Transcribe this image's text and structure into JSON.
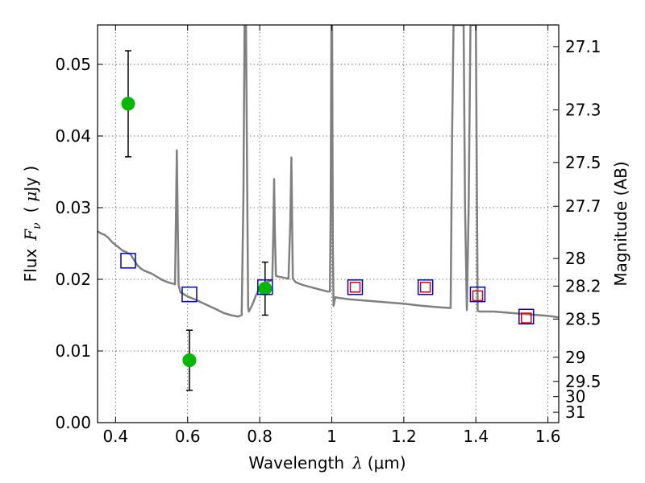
{
  "chart_data": {
    "type": "scatter",
    "title": "",
    "xlabel_text": "Wavelength",
    "xlabel_symbol": "λ",
    "xlabel_unit": "(μm)",
    "ylabel_text": "Flux",
    "ylabel_symbol": "F",
    "ylabel_subscript": "ν",
    "ylabel_unit_open": "(",
    "ylabel_unit_mu": "μ",
    "ylabel_unit_rest": "Jy )",
    "y2label": "Magnitude (AB)",
    "xlim": [
      0.35,
      1.63
    ],
    "ylim": [
      0.0,
      0.0555
    ],
    "grid": true,
    "x_ticks": [
      0.4,
      0.6,
      0.8,
      1.0,
      1.2,
      1.4,
      1.6
    ],
    "x_tick_labels": [
      "0.4",
      "0.6",
      "0.8",
      "1",
      "1.2",
      "1.4",
      "1.6"
    ],
    "y_ticks": [
      0.0,
      0.01,
      0.02,
      0.03,
      0.04,
      0.05
    ],
    "y_tick_labels": [
      "0.00",
      "0.01",
      "0.02",
      "0.03",
      "0.04",
      "0.05"
    ],
    "y2_ticks": [
      27.1,
      27.3,
      27.5,
      27.7,
      28.0,
      28.2,
      28.5,
      29.0,
      29.5,
      30.0,
      31.0
    ],
    "y2_tick_labels": [
      "27.1",
      "27.3",
      "27.5",
      "27.7",
      "28",
      "28.2",
      "28.5",
      "29",
      "29.5",
      "30",
      "31"
    ],
    "series": [
      {
        "kind": "line",
        "color": "#808080",
        "x": [
          0.35,
          0.36,
          0.37,
          0.38,
          0.39,
          0.4,
          0.41,
          0.42,
          0.43,
          0.435,
          0.44,
          0.45,
          0.46,
          0.47,
          0.48,
          0.49,
          0.5,
          0.51,
          0.52,
          0.53,
          0.54,
          0.55,
          0.56,
          0.565,
          0.568,
          0.57,
          0.572,
          0.575,
          0.58,
          0.6,
          0.62,
          0.65,
          0.68,
          0.7,
          0.72,
          0.74,
          0.75,
          0.755,
          0.758,
          0.76,
          0.762,
          0.765,
          0.768,
          0.77,
          0.78,
          0.79,
          0.8,
          0.81,
          0.815,
          0.82,
          0.825,
          0.83,
          0.835,
          0.838,
          0.84,
          0.842,
          0.845,
          0.85,
          0.86,
          0.87,
          0.88,
          0.885,
          0.888,
          0.89,
          0.892,
          0.895,
          0.9,
          0.92,
          0.95,
          0.98,
          0.99,
          0.995,
          0.997,
          0.999,
          1.001,
          1.003,
          1.005,
          1.01,
          1.02,
          1.05,
          1.1,
          1.15,
          1.2,
          1.25,
          1.3,
          1.33,
          1.334,
          1.338,
          1.342,
          1.346,
          1.35,
          1.354,
          1.358,
          1.362,
          1.366,
          1.37,
          1.375,
          1.38,
          1.385,
          1.39,
          1.395,
          1.4,
          1.405,
          1.41,
          1.45,
          1.5,
          1.55,
          1.6,
          1.63
        ],
        "y": [
          0.0267,
          0.0264,
          0.0262,
          0.0258,
          0.0252,
          0.0248,
          0.0244,
          0.024,
          0.0238,
          0.0236,
          0.0236,
          0.0228,
          0.022,
          0.0215,
          0.0212,
          0.021,
          0.0208,
          0.0205,
          0.0202,
          0.0199,
          0.0197,
          0.0195,
          0.0194,
          0.0193,
          0.03,
          0.038,
          0.03,
          0.0192,
          0.0182,
          0.0176,
          0.0172,
          0.0165,
          0.0158,
          0.0153,
          0.015,
          0.0148,
          0.015,
          0.032,
          0.0555,
          0.0555,
          0.0555,
          0.035,
          0.016,
          0.0155,
          0.0165,
          0.0178,
          0.0188,
          0.0193,
          0.0195,
          0.0196,
          0.0197,
          0.0198,
          0.02,
          0.027,
          0.034,
          0.027,
          0.0205,
          0.0204,
          0.0203,
          0.0202,
          0.0201,
          0.028,
          0.037,
          0.028,
          0.0201,
          0.0199,
          0.0196,
          0.0192,
          0.0188,
          0.0184,
          0.0183,
          0.0183,
          0.03,
          0.0555,
          0.0555,
          0.025,
          0.0163,
          0.0175,
          0.0174,
          0.0172,
          0.017,
          0.0168,
          0.0166,
          0.0163,
          0.0161,
          0.016,
          0.04,
          0.0555,
          0.0555,
          0.0555,
          0.0555,
          0.0555,
          0.0555,
          0.0555,
          0.0555,
          0.03,
          0.0157,
          0.03,
          0.0555,
          0.0555,
          0.0555,
          0.0555,
          0.0156,
          0.0155,
          0.0155,
          0.0153,
          0.0151,
          0.0149,
          0.0147
        ]
      },
      {
        "kind": "points",
        "color": "#00b900",
        "x": [
          0.435,
          0.605,
          0.815
        ],
        "y": [
          0.0445,
          0.0087,
          0.0187
        ],
        "yerr": [
          0.0074,
          0.0042,
          0.0037
        ]
      },
      {
        "kind": "squares",
        "color": "#0000cc",
        "x": [
          0.435,
          0.605,
          0.815,
          1.065,
          1.26,
          1.405,
          1.54
        ],
        "y": [
          0.0226,
          0.0179,
          0.0189,
          0.0189,
          0.0189,
          0.0179,
          0.0148
        ]
      },
      {
        "kind": "squares",
        "color": "#dd0000",
        "x": [
          1.065,
          1.26,
          1.405,
          1.54
        ],
        "y": [
          0.0189,
          0.0189,
          0.0177,
          0.0146
        ]
      }
    ]
  }
}
